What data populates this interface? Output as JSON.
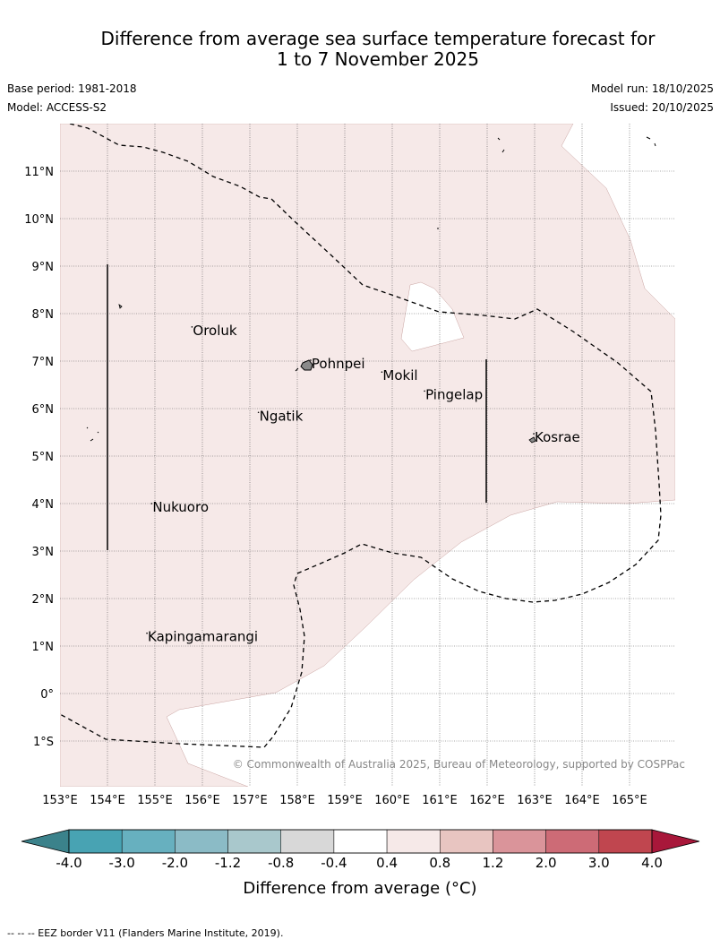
{
  "title_line1": "Difference from average sea surface temperature forecast for",
  "title_line2": "1 to 7 November 2025",
  "base_period": "Base period: 1981-2018",
  "model": "Model: ACCESS-S2",
  "model_run": "Model run: 18/10/2025",
  "issued": "Issued: 20/10/2025",
  "lon_labels": [
    "153°E",
    "154°E",
    "155°E",
    "156°E",
    "157°E",
    "158°E",
    "159°E",
    "160°E",
    "161°E",
    "162°E",
    "163°E",
    "164°E",
    "165°E"
  ],
  "lat_labels": [
    "11°N",
    "10°N",
    "9°N",
    "8°N",
    "7°N",
    "6°N",
    "5°N",
    "4°N",
    "3°N",
    "2°N",
    "1°N",
    "0°",
    "1°S"
  ],
  "places": [
    {
      "name": "Oroluk",
      "lon": 155.8,
      "lat": 7.55
    },
    {
      "name": "Pohnpei",
      "lon": 158.3,
      "lat": 6.85
    },
    {
      "name": "Mokil",
      "lon": 159.8,
      "lat": 6.6
    },
    {
      "name": "Pingelap",
      "lon": 160.7,
      "lat": 6.2
    },
    {
      "name": "Ngatik",
      "lon": 157.2,
      "lat": 5.75
    },
    {
      "name": "Kosrae",
      "lon": 163.0,
      "lat": 5.3
    },
    {
      "name": "Nukuoro",
      "lon": 154.95,
      "lat": 3.83
    },
    {
      "name": "Kapingamarangi",
      "lon": 154.85,
      "lat": 1.1
    }
  ],
  "copyright": "© Commonwealth of Australia 2025, Bureau of Meteorology, supported by COSPPac",
  "colorbar": {
    "ticks": [
      "-4.0",
      "-3.0",
      "-2.0",
      "-1.2",
      "-0.8",
      "-0.4",
      "0.4",
      "0.8",
      "1.2",
      "2.0",
      "3.0",
      "4.0"
    ],
    "colors": [
      "#48a3b3",
      "#67b0bf",
      "#8bbbc6",
      "#a9c8cc",
      "#d8d8d8",
      "#ffffff",
      "#f6e9e8",
      "#e8c5c1",
      "#da949a",
      "#cd6b76",
      "#c0464f"
    ],
    "under_color": "#3b828b",
    "over_color": "#a8173a",
    "label": "Difference from average (°C)"
  },
  "footer": "-- -- -- EEZ border V11 (Flanders Marine Institute, 2019).",
  "colors": {
    "warm_fill": "#f6e9e8",
    "neutral_fill": "#ffffff"
  }
}
